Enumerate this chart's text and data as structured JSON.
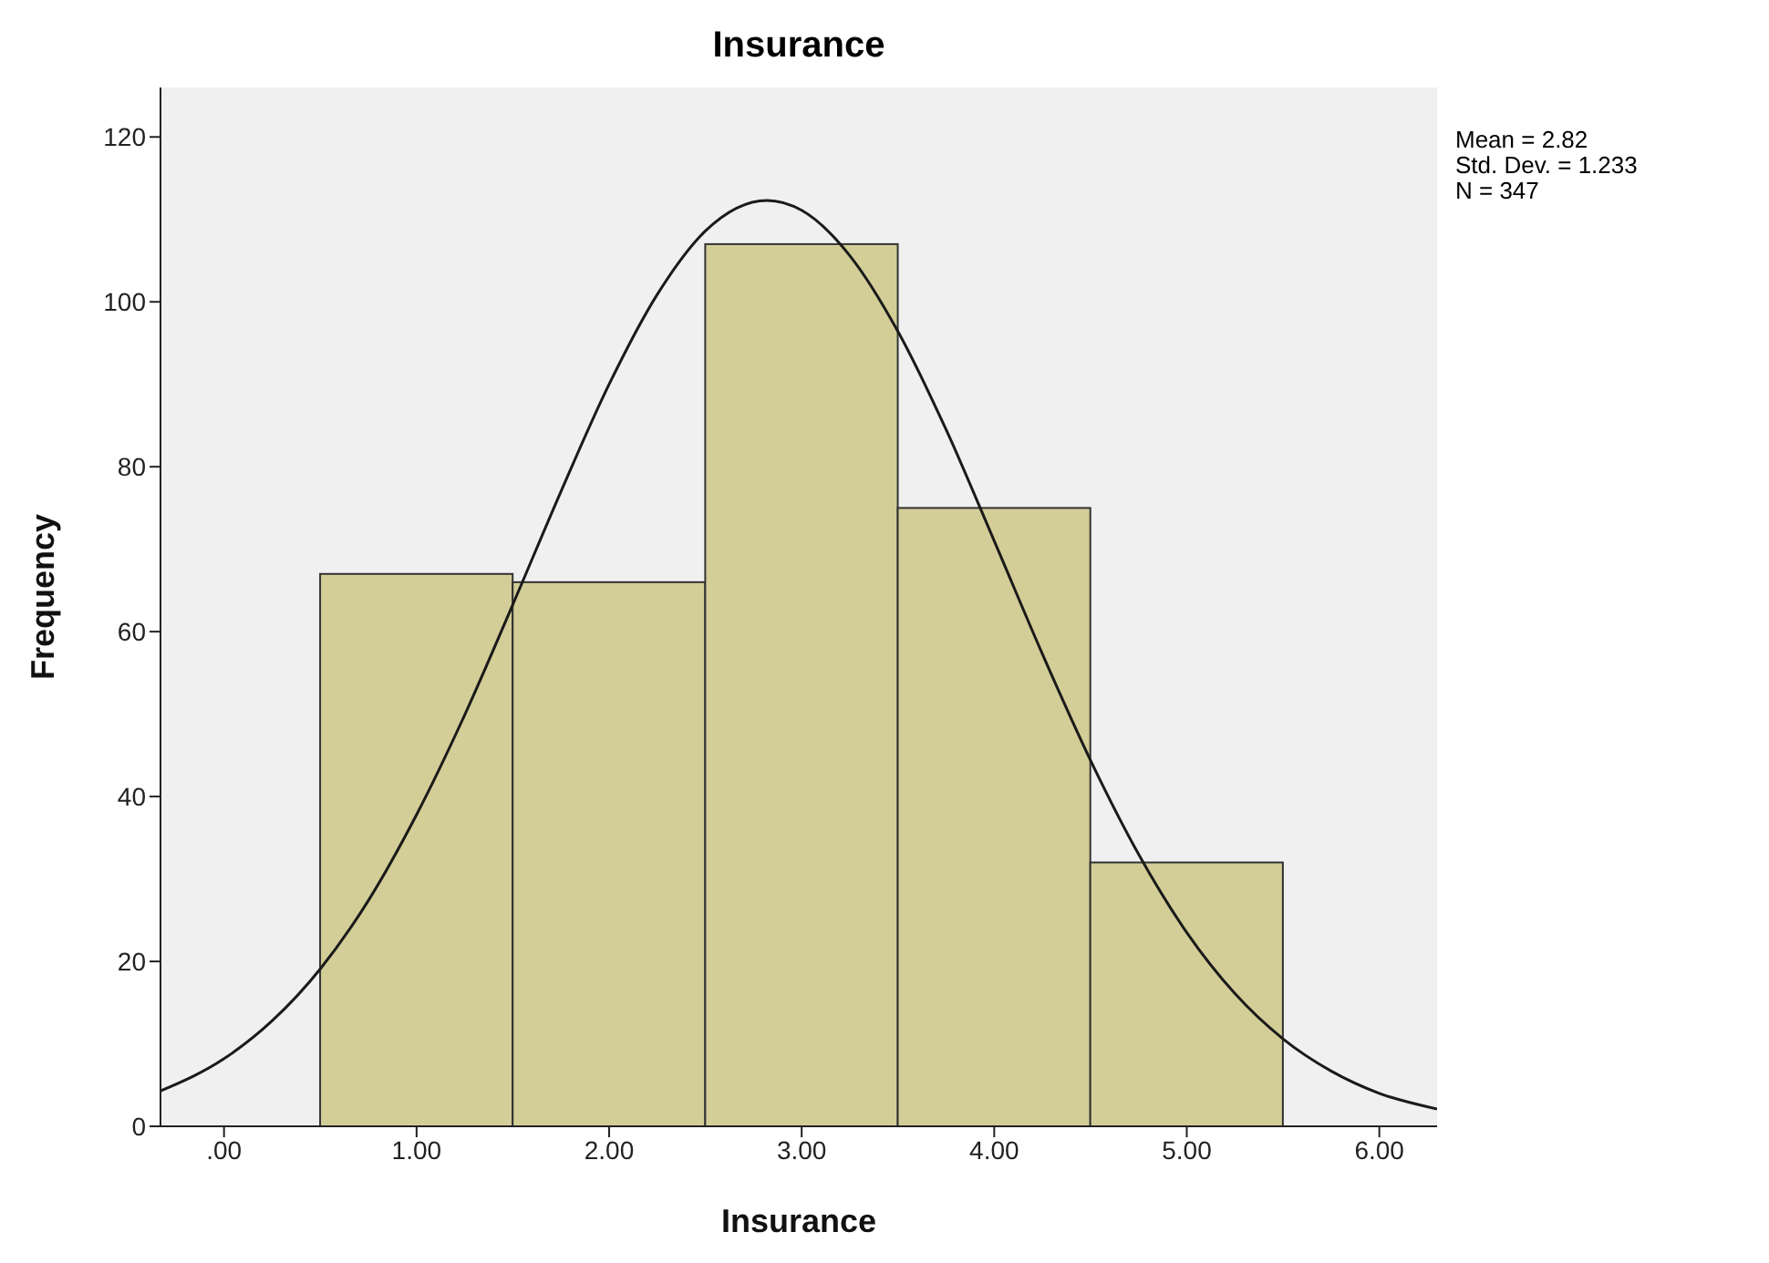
{
  "chart_data": {
    "type": "histogram",
    "title": "Insurance",
    "xlabel": "Insurance",
    "ylabel": "Frequency",
    "bins": [
      0.5,
      1.5,
      2.5,
      3.5,
      4.5,
      5.5
    ],
    "values": [
      67,
      66,
      107,
      75,
      32
    ],
    "color": "#d3ce97",
    "series": [
      {
        "type": "line",
        "color": "#1a1a1a",
        "x": [
          -0.33,
          0,
          0.25,
          0.5,
          0.75,
          1,
          1.25,
          1.5,
          1.75,
          2,
          2.25,
          2.5,
          2.82,
          3,
          3.25,
          3.5,
          3.75,
          4,
          4.25,
          4.5,
          4.75,
          5,
          5.25,
          5.5,
          5.75,
          6,
          6.3
        ],
        "values": [
          4.3,
          8.2,
          12.8,
          19.1,
          27.4,
          37.8,
          49.9,
          63.3,
          77.0,
          90.0,
          100.9,
          108.6,
          112.3,
          111.1,
          105.6,
          96.4,
          84.5,
          71.0,
          57.3,
          44.4,
          33.0,
          23.5,
          16.1,
          10.6,
          6.7,
          4.0,
          2.1
        ]
      }
    ],
    "xlim": [
      -0.33,
      6.3
    ],
    "xticks": [
      {
        "value": 0,
        "label": ".00"
      },
      {
        "value": 1,
        "label": "1.00"
      },
      {
        "value": 2,
        "label": "2.00"
      },
      {
        "value": 3,
        "label": "3.00"
      },
      {
        "value": 4,
        "label": "4.00"
      },
      {
        "value": 5,
        "label": "5.00"
      },
      {
        "value": 6,
        "label": "6.00"
      }
    ],
    "ylim": [
      0,
      126
    ],
    "yticks": [
      0,
      20,
      40,
      60,
      80,
      100,
      120
    ],
    "grid": false,
    "annotations": [
      "Mean = 2.82",
      "Std. Dev. = 1.233",
      "N = 347"
    ]
  }
}
